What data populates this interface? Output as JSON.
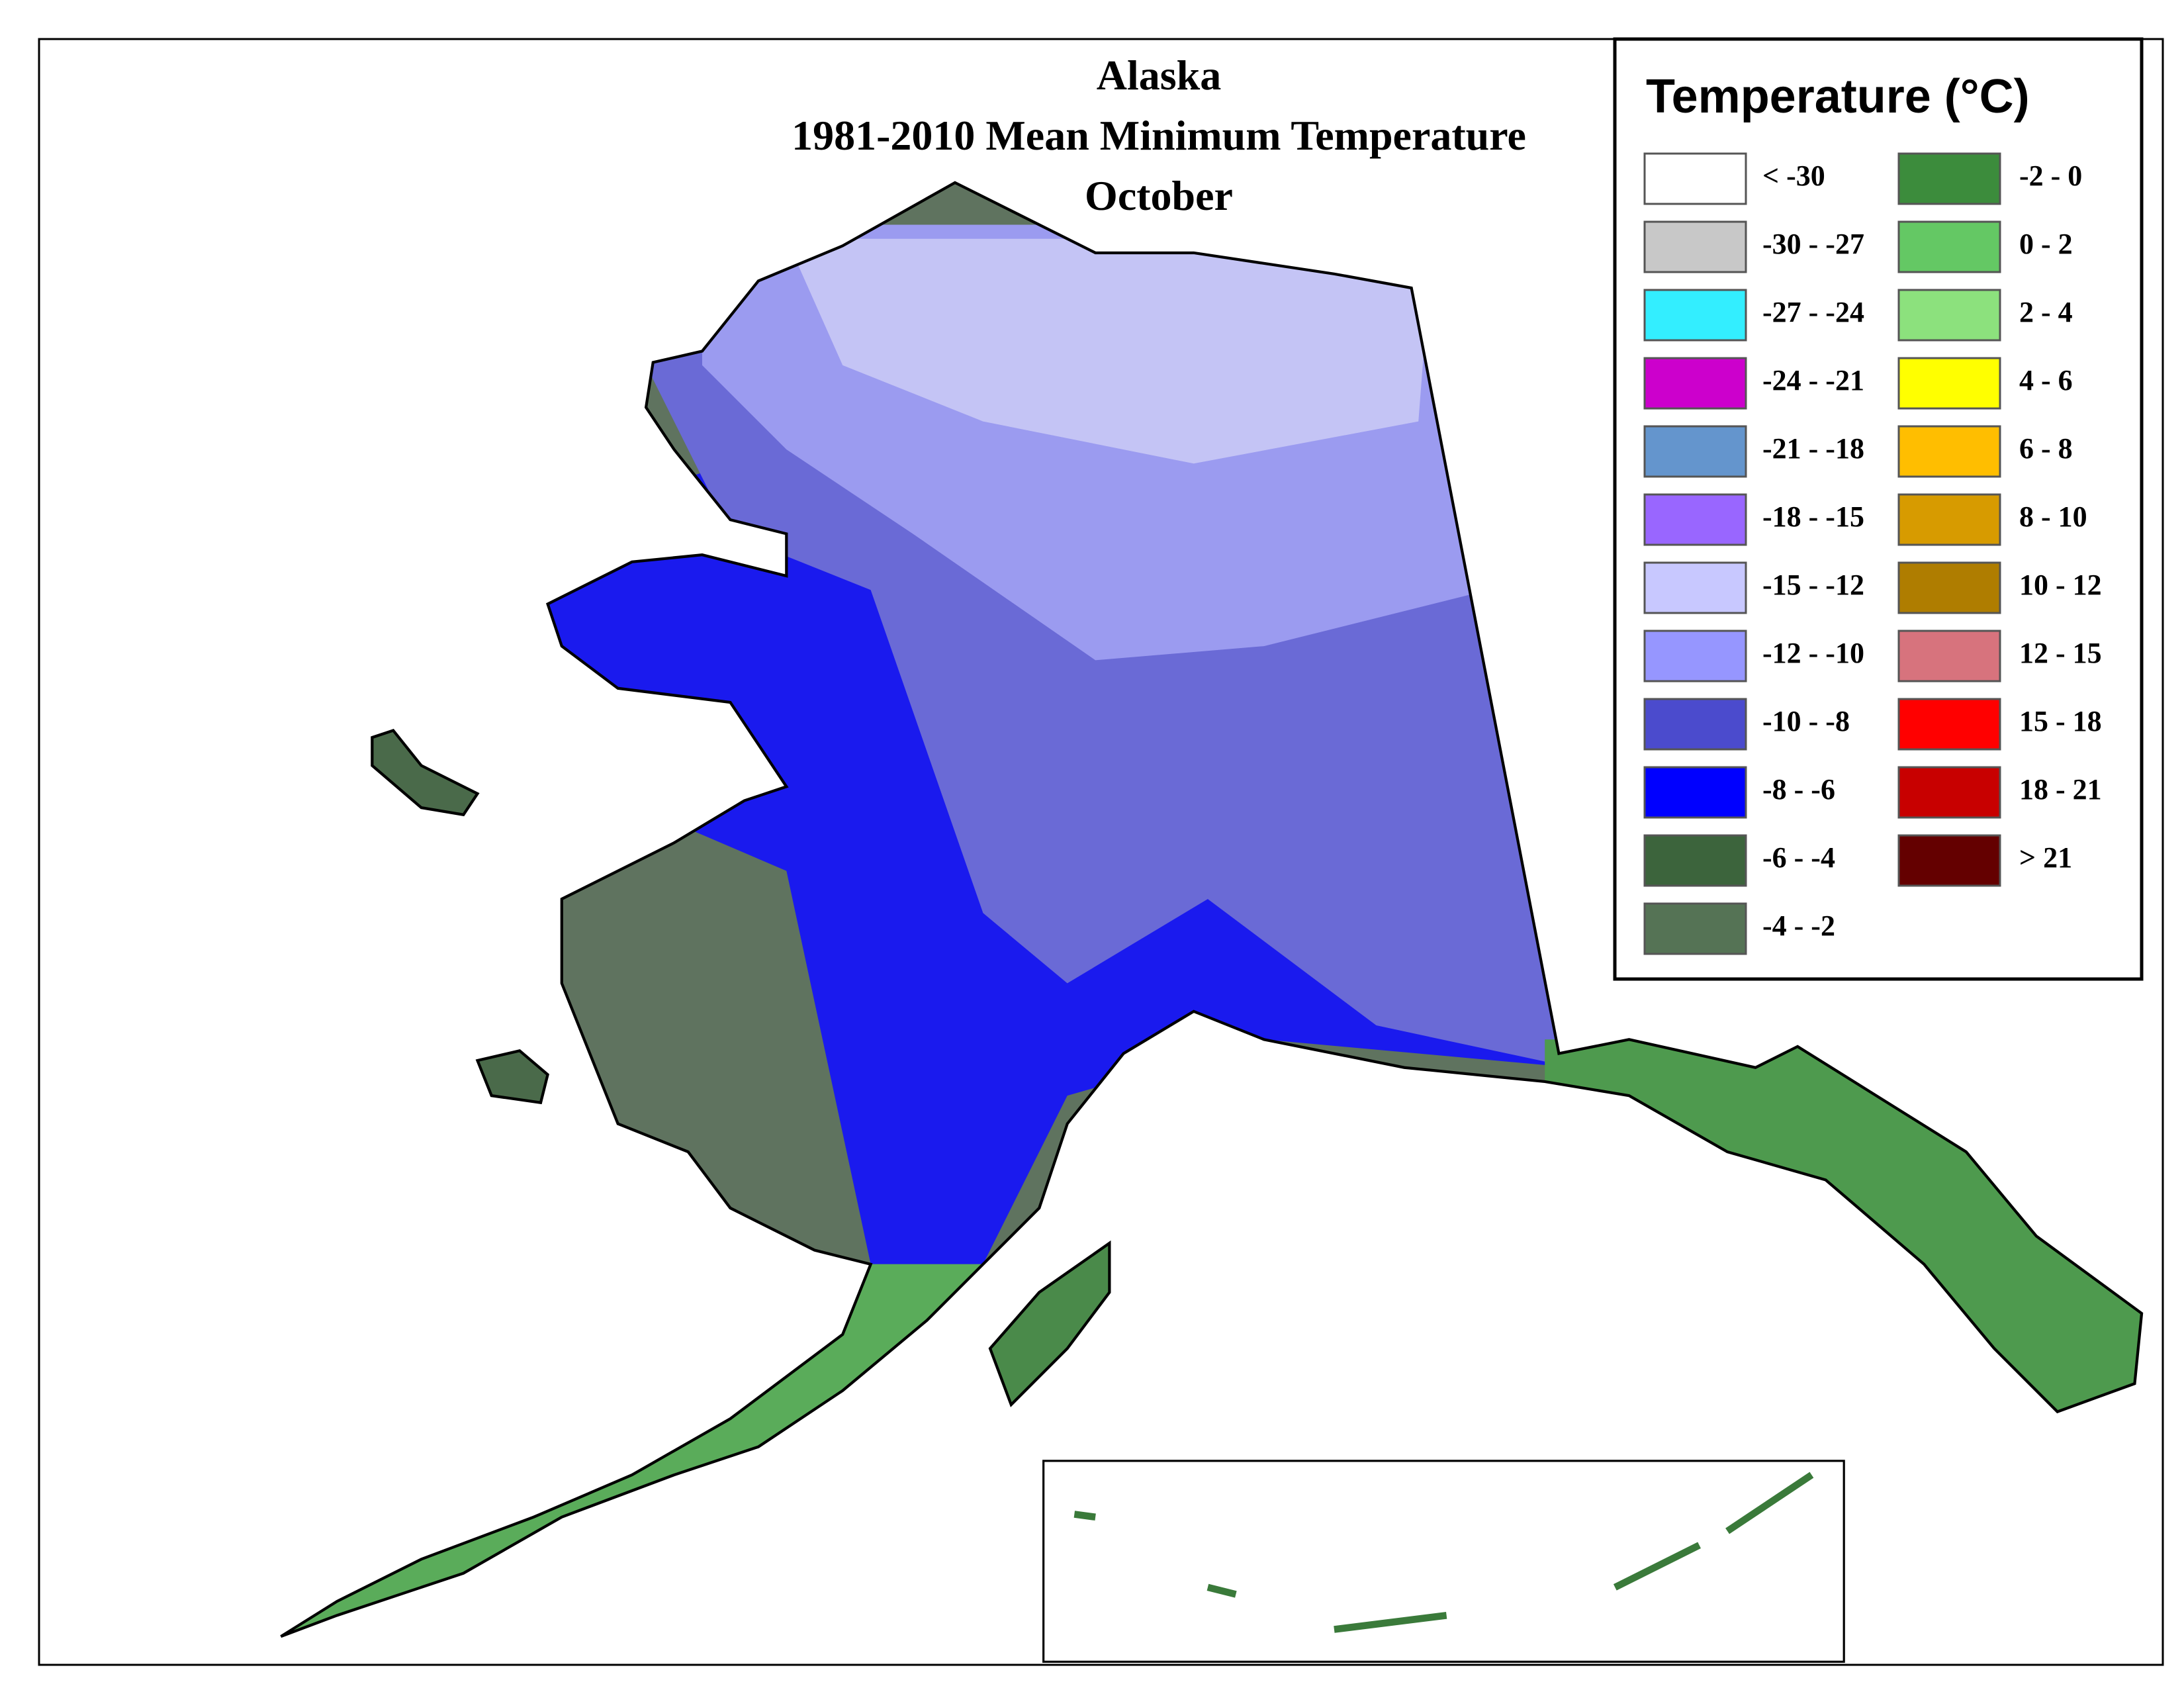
{
  "map": {
    "title_lines": [
      "Alaska",
      "1981-2010 Mean Minimum Temperature",
      "October"
    ]
  },
  "legend": {
    "title": "Temperature (°C)",
    "items": [
      {
        "label": "< -30",
        "color": "#ffffff"
      },
      {
        "label": "-30 - -27",
        "color": "#c8c8c8"
      },
      {
        "label": "-27 - -24",
        "color": "#33eeff"
      },
      {
        "label": "-24 - -21",
        "color": "#cc00cc"
      },
      {
        "label": "-21 - -18",
        "color": "#6495cd"
      },
      {
        "label": "-18 - -15",
        "color": "#9966ff"
      },
      {
        "label": "-15 - -12",
        "color": "#c8c8ff"
      },
      {
        "label": "-12 - -10",
        "color": "#9696ff"
      },
      {
        "label": "-10 - -8",
        "color": "#4b4bcd"
      },
      {
        "label": "-8 - -6",
        "color": "#0000ff"
      },
      {
        "label": "-6 - -4",
        "color": "#3c643c"
      },
      {
        "label": "-4 - -2",
        "color": "#557355"
      },
      {
        "label": "-2 - 0",
        "color": "#3c8c3c"
      },
      {
        "label": "0 - 2",
        "color": "#64c864"
      },
      {
        "label": "2 - 4",
        "color": "#8ce17d"
      },
      {
        "label": "4 - 6",
        "color": "#ffff00"
      },
      {
        "label": "6 - 8",
        "color": "#ffbe00"
      },
      {
        "label": "8 - 10",
        "color": "#d79b00"
      },
      {
        "label": "10 - 12",
        "color": "#af7d00"
      },
      {
        "label": "12 - 15",
        "color": "#d7737d"
      },
      {
        "label": "15 - 18",
        "color": "#ff0000"
      },
      {
        "label": "18 - 21",
        "color": "#c80000"
      },
      {
        "label": "> 21",
        "color": "#640000"
      }
    ]
  }
}
